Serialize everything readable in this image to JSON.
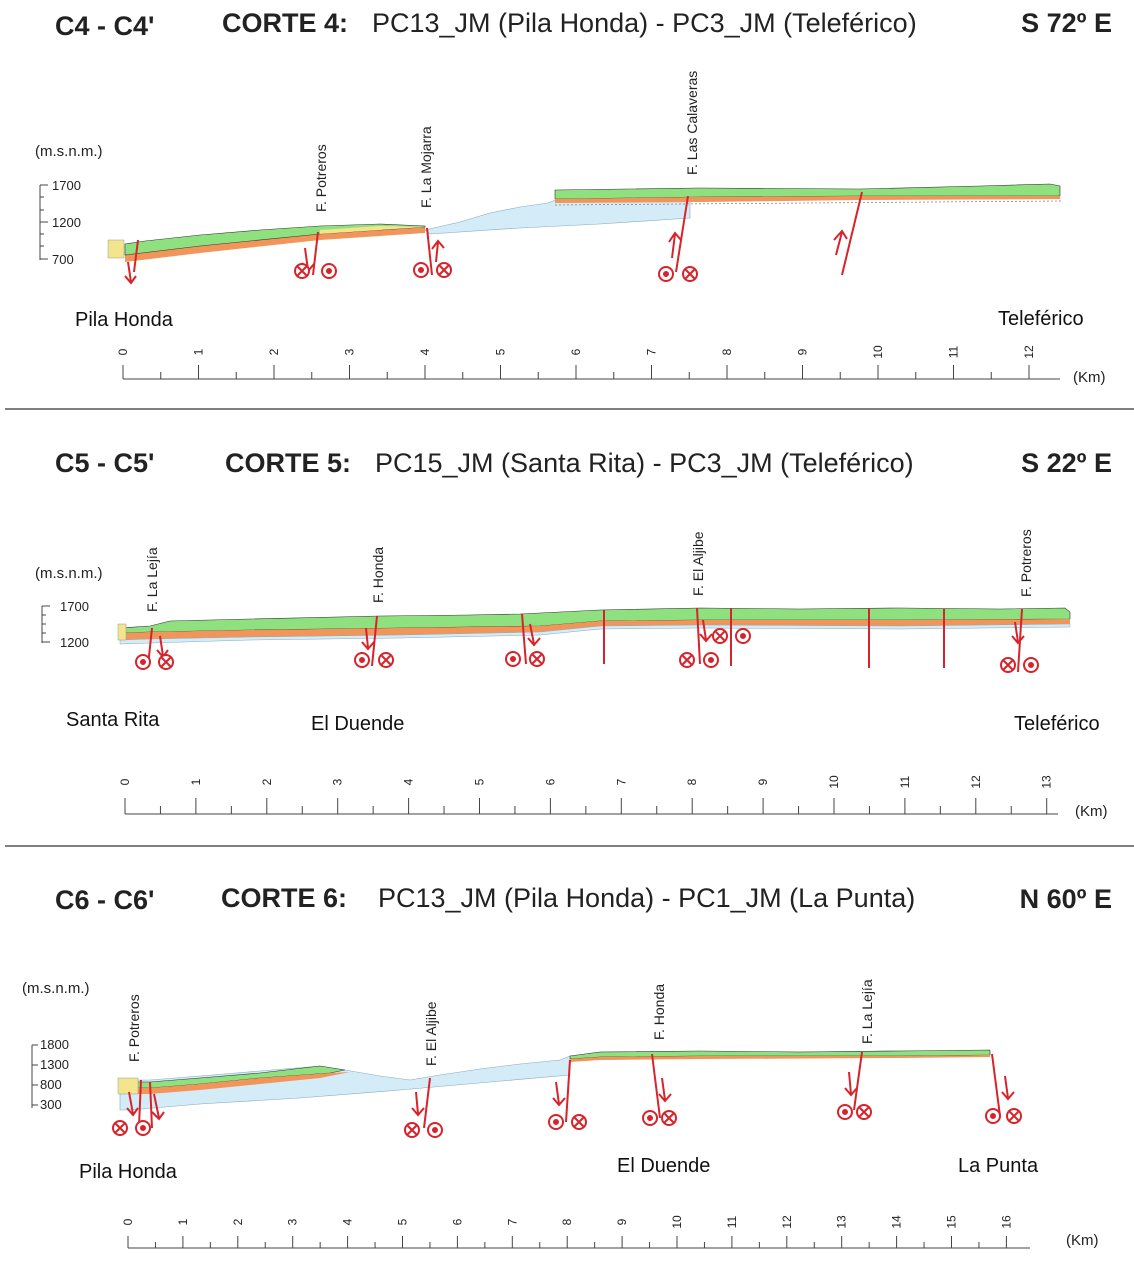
{
  "sections": [
    {
      "id": "C4 - C4'",
      "title_bold": "CORTE 4:",
      "title_rest": "PC13_JM (Pila Honda) - PC3_JM (Teleférico)",
      "direction": "S 72º E",
      "unit": "(m.s.n.m.)",
      "elevation_labels": [
        "1700",
        "1200",
        "700"
      ],
      "faults": [
        "F. Potreros",
        "F. La Mojarra",
        "F. Las Calaveras"
      ],
      "places": [
        "Pila Honda",
        "Teleférico"
      ],
      "ticks": [
        "0",
        "1",
        "2",
        "3",
        "4",
        "5",
        "6",
        "7",
        "8",
        "9",
        "10",
        "11",
        "12"
      ],
      "km_label": "(Km)"
    },
    {
      "id": "C5 - C5'",
      "title_bold": "CORTE 5:",
      "title_rest": "PC15_JM (Santa Rita) - PC3_JM (Teleférico)",
      "direction": "S 22º E",
      "unit": "(m.s.n.m.)",
      "elevation_labels": [
        "1700",
        "1200"
      ],
      "faults": [
        "F. La Lejía",
        "F. Honda",
        "F. El Aljibe",
        "F. Potreros"
      ],
      "places": [
        "Santa Rita",
        "El Duende",
        "Teleférico"
      ],
      "ticks": [
        "0",
        "1",
        "2",
        "3",
        "4",
        "5",
        "6",
        "7",
        "8",
        "9",
        "10",
        "11",
        "12",
        "13"
      ],
      "km_label": "(Km)"
    },
    {
      "id": "C6 - C6'",
      "title_bold": "CORTE 6:",
      "title_rest": "PC13_JM (Pila Honda) - PC1_JM (La Punta)",
      "direction": "N 60º E",
      "unit": "(m.s.n.m.)",
      "elevation_labels": [
        "1800",
        "1300",
        "800",
        "300"
      ],
      "faults": [
        "F. Potreros",
        "F. El Aljibe",
        "F. Honda",
        "F. La Lejía"
      ],
      "places": [
        "Pila Honda",
        "El Duende",
        "La Punta"
      ],
      "ticks": [
        "0",
        "1",
        "2",
        "3",
        "4",
        "5",
        "6",
        "7",
        "8",
        "9",
        "10",
        "11",
        "12",
        "13",
        "14",
        "15",
        "16"
      ],
      "km_label": "(Km)"
    }
  ],
  "colors": {
    "green": "#8fe07f",
    "orange": "#f2955a",
    "yellow": "#f3e58c",
    "blue": "#d3ecf7",
    "fault": "#d8232a",
    "divider": "#555555"
  }
}
